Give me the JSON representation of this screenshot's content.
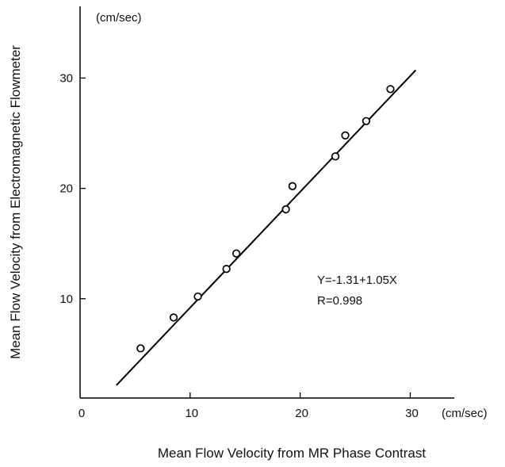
{
  "chart_data": {
    "type": "scatter",
    "xlabel": "Mean Flow Velocity from MR Phase Contrast",
    "ylabel": "Mean Flow Velocity from Electromagnetic Flowmeter",
    "x_unit": "(cm/sec)",
    "y_unit": "(cm/sec)",
    "xlim": [
      0,
      34
    ],
    "ylim": [
      1,
      36.5
    ],
    "x_ticks": [
      0,
      10,
      20,
      30
    ],
    "x_tick_labels": [
      "0",
      "10",
      "20",
      "30"
    ],
    "y_ticks": [
      10,
      20,
      30
    ],
    "y_tick_labels": [
      "10",
      "20",
      "30"
    ],
    "grid": false,
    "points": {
      "x": [
        5.5,
        8.5,
        10.7,
        13.3,
        14.2,
        18.7,
        19.3,
        23.2,
        24.1,
        26.0,
        28.2
      ],
      "y": [
        5.5,
        8.3,
        10.2,
        12.7,
        14.1,
        18.1,
        20.2,
        22.9,
        24.8,
        26.1,
        29.0
      ]
    },
    "fit_line": {
      "intercept": -1.31,
      "slope": 1.05,
      "x_range": [
        3.3,
        30.5
      ]
    },
    "annotations": [
      "Y=-1.31+1.05X",
      "R=0.998"
    ]
  }
}
